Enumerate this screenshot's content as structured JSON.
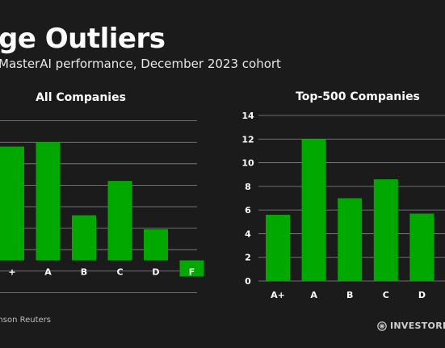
{
  "header": {
    "title": "ge Outliers",
    "subtitle": "MasterAI performance, December 2023 cohort"
  },
  "footer": {
    "source": "mson Reuters",
    "logo_text": "INVESTORPL"
  },
  "colors": {
    "background": "#1b1b1b",
    "bar": "#00a800",
    "gridline": "#8a8a8a",
    "text": "#ffffff"
  },
  "chart_data": [
    {
      "type": "bar",
      "title": "All Companies",
      "categories": [
        "+",
        "A",
        "B",
        "C",
        "D",
        "F"
      ],
      "values": [
        10.6,
        11.0,
        4.2,
        7.4,
        2.9,
        -1.5
      ],
      "ylim": [
        -3.5,
        13.5
      ],
      "grid": true,
      "ytick_labels_visible": false
    },
    {
      "type": "bar",
      "title": "Top-500 Companies",
      "categories": [
        "A+",
        "A",
        "B",
        "C",
        "D"
      ],
      "values": [
        5.6,
        12.0,
        7.0,
        8.6,
        5.7
      ],
      "ylim": [
        0,
        14
      ],
      "yticks": [
        "0",
        "2",
        "4",
        "6",
        "8",
        "10",
        "12",
        "14"
      ],
      "grid": true
    }
  ]
}
